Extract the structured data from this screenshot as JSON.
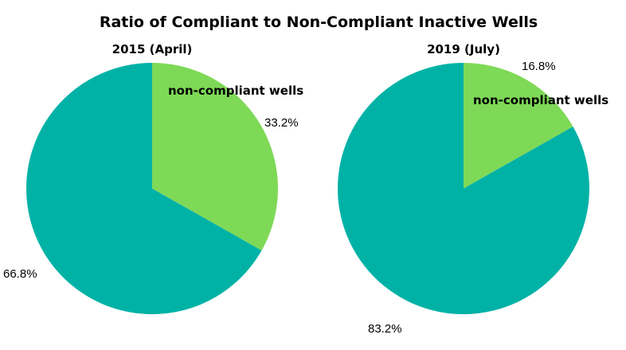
{
  "title": "Ratio of Compliant to Non-Compliant  Inactive Wells",
  "chart_data": [
    {
      "type": "pie",
      "title": "2015 (April)",
      "start_angle": "12 o'clock",
      "direction": "clockwise",
      "slices": [
        {
          "label": "non-compliant wells",
          "value": 33.2,
          "value_label": "33.2%",
          "color": "#7ED957"
        },
        {
          "label": "",
          "value": 66.8,
          "value_label": "66.8%",
          "color": "#00B2A6"
        }
      ]
    },
    {
      "type": "pie",
      "title": "2019 (July)",
      "start_angle": "12 o'clock",
      "direction": "clockwise",
      "slices": [
        {
          "label": "non-compliant wells",
          "value": 16.8,
          "value_label": "16.8%",
          "color": "#7ED957"
        },
        {
          "label": "",
          "value": 83.2,
          "value_label": "83.2%",
          "color": "#00B2A6"
        }
      ]
    }
  ]
}
